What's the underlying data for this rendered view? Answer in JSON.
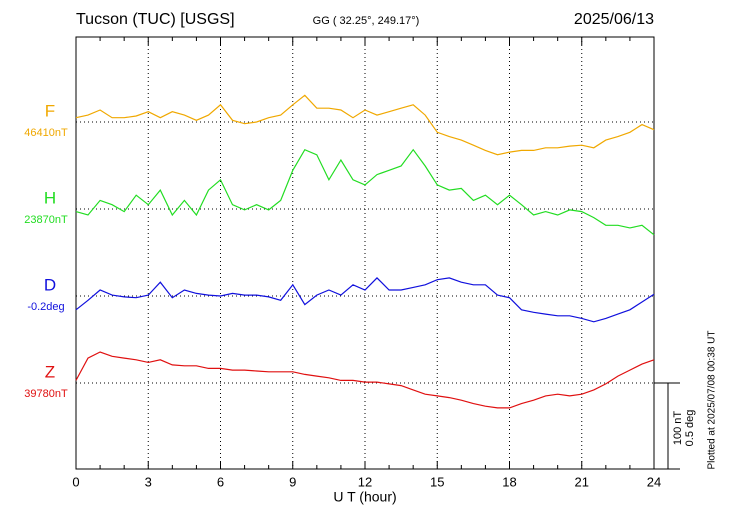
{
  "chart_data": {
    "type": "line",
    "title": "Tucson (TUC)  [USGS]",
    "subtitle": "GG ( 32.25°, 249.17°)",
    "date": "2025/06/13",
    "x_label": "U T (hour)",
    "footnote": "Plotted at 2025/07/08 00:38 UT",
    "xlim": [
      0,
      24
    ],
    "xticks": [
      0,
      3,
      6,
      9,
      12,
      15,
      18,
      21,
      24
    ],
    "grid": true,
    "scale_bar": {
      "value": 100,
      "labels": [
        "100 nT",
        "0.5 deg"
      ]
    },
    "x": [
      0,
      0.5,
      1,
      1.5,
      2,
      2.5,
      3,
      3.5,
      4,
      4.5,
      5,
      5.5,
      6,
      6.5,
      7,
      7.5,
      8,
      8.5,
      9,
      9.5,
      10,
      10.5,
      11,
      11.5,
      12,
      12.5,
      13,
      13.5,
      14,
      14.5,
      15,
      15.5,
      16,
      16.5,
      17,
      17.5,
      18,
      18.5,
      19,
      19.5,
      20,
      20.5,
      21,
      21.5,
      22,
      22.5,
      23,
      23.5,
      24
    ],
    "series": [
      {
        "name": "F",
        "baseline": "46410nT",
        "color": "#f0a800",
        "values": [
          5,
          8,
          14,
          5,
          5,
          7,
          12,
          5,
          12,
          8,
          2,
          8,
          20,
          2,
          -2,
          0,
          5,
          8,
          20,
          31,
          16,
          16,
          14,
          5,
          14,
          8,
          12,
          16,
          20,
          8,
          -12,
          -17,
          -21,
          -27,
          -33,
          -38,
          -35,
          -33,
          -33,
          -30,
          -30,
          -28,
          -27,
          -30,
          -21,
          -17,
          -12,
          -3,
          -9
        ]
      },
      {
        "name": "H",
        "baseline": "23870nT",
        "color": "#22dd22",
        "values": [
          -3,
          -7,
          10,
          5,
          -3,
          16,
          5,
          22,
          -7,
          10,
          -7,
          22,
          34,
          5,
          -1,
          5,
          -1,
          10,
          45,
          69,
          63,
          34,
          57,
          34,
          28,
          40,
          45,
          50,
          69,
          50,
          28,
          22,
          24,
          10,
          16,
          5,
          16,
          5,
          -7,
          -3,
          -7,
          -1,
          -3,
          -10,
          -19,
          -19,
          -22,
          -19,
          -30
        ]
      },
      {
        "name": "D",
        "baseline": "-0.2deg",
        "color": "#1010dd",
        "values": [
          -16,
          -5,
          7,
          1,
          -1,
          -2,
          1,
          16,
          -2,
          7,
          3,
          1,
          0,
          3,
          1,
          1,
          -1,
          -5,
          13,
          -10,
          1,
          7,
          1,
          13,
          7,
          21,
          7,
          7,
          10,
          13,
          19,
          21,
          16,
          13,
          13,
          1,
          -2,
          -16,
          -19,
          -21,
          -23,
          -23,
          -26,
          -30,
          -26,
          -21,
          -16,
          -7,
          2
        ]
      },
      {
        "name": "Z",
        "baseline": "39780nT",
        "color": "#e01010",
        "values": [
          3,
          29,
          36,
          31,
          29,
          27,
          24,
          27,
          21,
          20,
          20,
          17,
          17,
          15,
          15,
          14,
          13,
          13,
          13,
          10,
          8,
          6,
          3,
          3,
          1,
          1,
          -1,
          -3,
          -8,
          -13,
          -15,
          -17,
          -20,
          -24,
          -27,
          -29,
          -29,
          -24,
          -20,
          -15,
          -13,
          -15,
          -13,
          -8,
          -1,
          8,
          15,
          22,
          27
        ]
      }
    ]
  }
}
